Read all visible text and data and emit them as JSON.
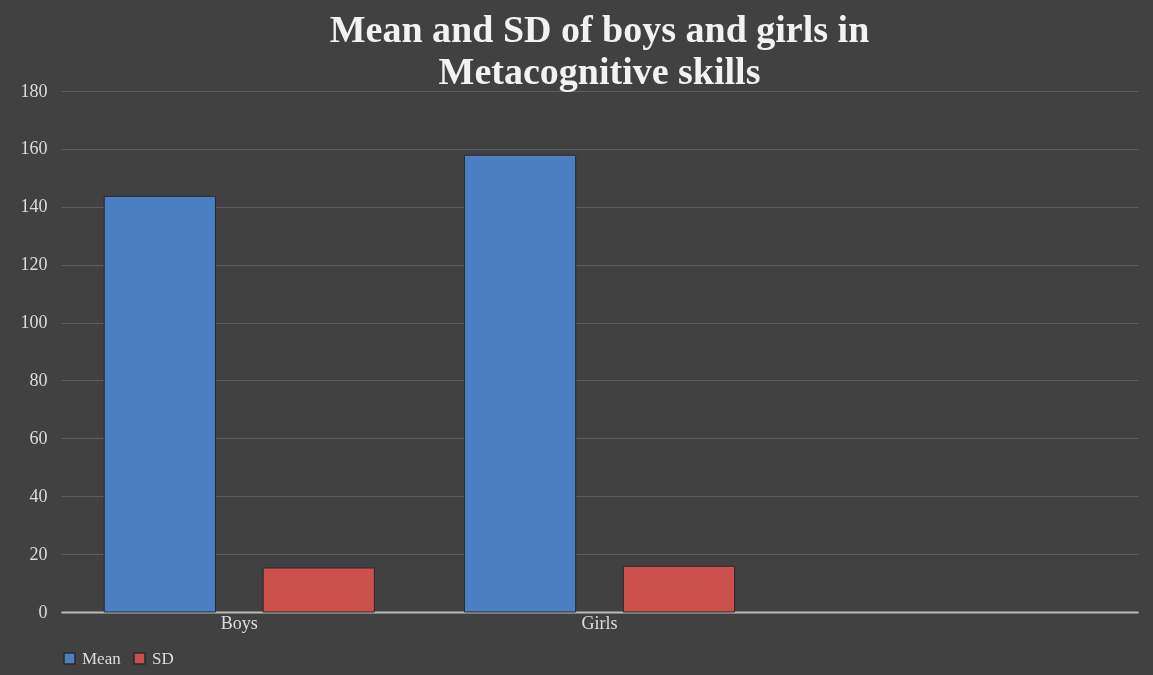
{
  "chart_data": {
    "type": "bar",
    "title": [
      "Mean and SD of boys and girls in",
      "Metacognitive skills"
    ],
    "categories": [
      "Boys",
      "Girls",
      null
    ],
    "series": [
      {
        "name": "Mean",
        "color": "#4a7fc4",
        "values": [
          143.6,
          157.8,
          null
        ]
      },
      {
        "name": "SD",
        "color": "#c9504c",
        "values": [
          15.2,
          15.8,
          null
        ]
      }
    ],
    "ylim": [
      0,
      180
    ],
    "yticks": [
      0,
      20,
      40,
      60,
      80,
      100,
      120,
      140,
      160,
      180
    ],
    "grid": "y",
    "legend": "bottom"
  }
}
